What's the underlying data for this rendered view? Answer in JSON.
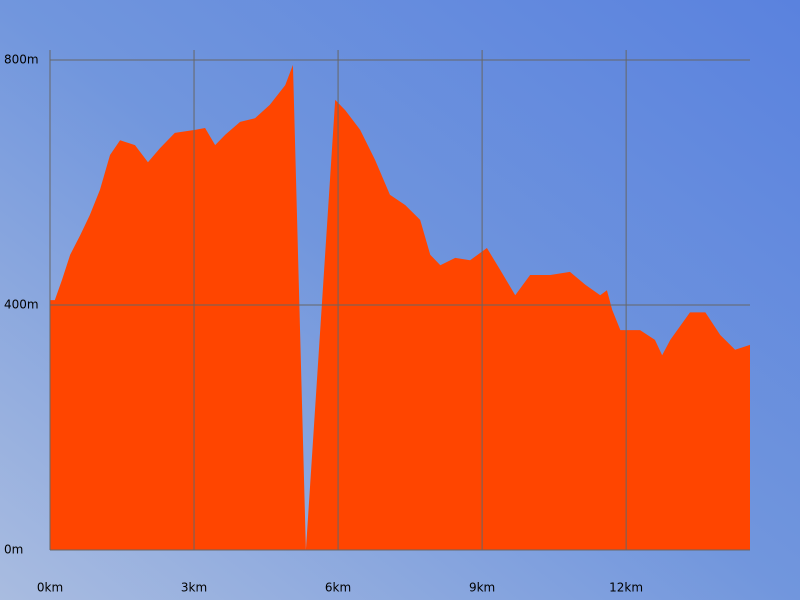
{
  "chart_data": {
    "type": "area",
    "color": "#ff4500",
    "grid": true,
    "xlim": [
      0,
      14.58
    ],
    "ylim": [
      0,
      800
    ],
    "xticks": [
      {
        "value": 0,
        "label": "0km"
      },
      {
        "value": 3,
        "label": "3km"
      },
      {
        "value": 6,
        "label": "6km"
      },
      {
        "value": 9,
        "label": "9km"
      },
      {
        "value": 12,
        "label": "12km"
      }
    ],
    "yticks": [
      {
        "value": 0,
        "label": "0m"
      },
      {
        "value": 400,
        "label": "400m"
      },
      {
        "value": 800,
        "label": "800m"
      }
    ],
    "x": [
      0,
      0.1,
      0.25,
      0.42,
      0.63,
      0.83,
      1.04,
      1.25,
      1.46,
      1.77,
      2.04,
      2.29,
      2.6,
      3.02,
      3.23,
      3.44,
      3.65,
      3.96,
      4.27,
      4.58,
      4.9,
      5.06,
      5.08,
      5.33,
      5.94,
      6.15,
      6.46,
      6.77,
      7.08,
      7.4,
      7.71,
      7.92,
      8.13,
      8.44,
      8.75,
      9.1,
      9.38,
      9.69,
      10.0,
      10.42,
      10.83,
      11.15,
      11.46,
      11.6,
      11.71,
      11.88,
      12.29,
      12.6,
      12.75,
      12.92,
      13.33,
      13.65,
      13.96,
      14.27,
      14.58
    ],
    "values": [
      408,
      408,
      441,
      482,
      514,
      547,
      588,
      645,
      669,
      661,
      633,
      656,
      681,
      686,
      689,
      661,
      678,
      699,
      705,
      727,
      759,
      792,
      735,
      0,
      735,
      718,
      686,
      637,
      580,
      563,
      539,
      482,
      465,
      477,
      473,
      493,
      457,
      416,
      449,
      449,
      454,
      433,
      416,
      424,
      392,
      359,
      359,
      343,
      318,
      343,
      388,
      388,
      351,
      327,
      335
    ]
  }
}
